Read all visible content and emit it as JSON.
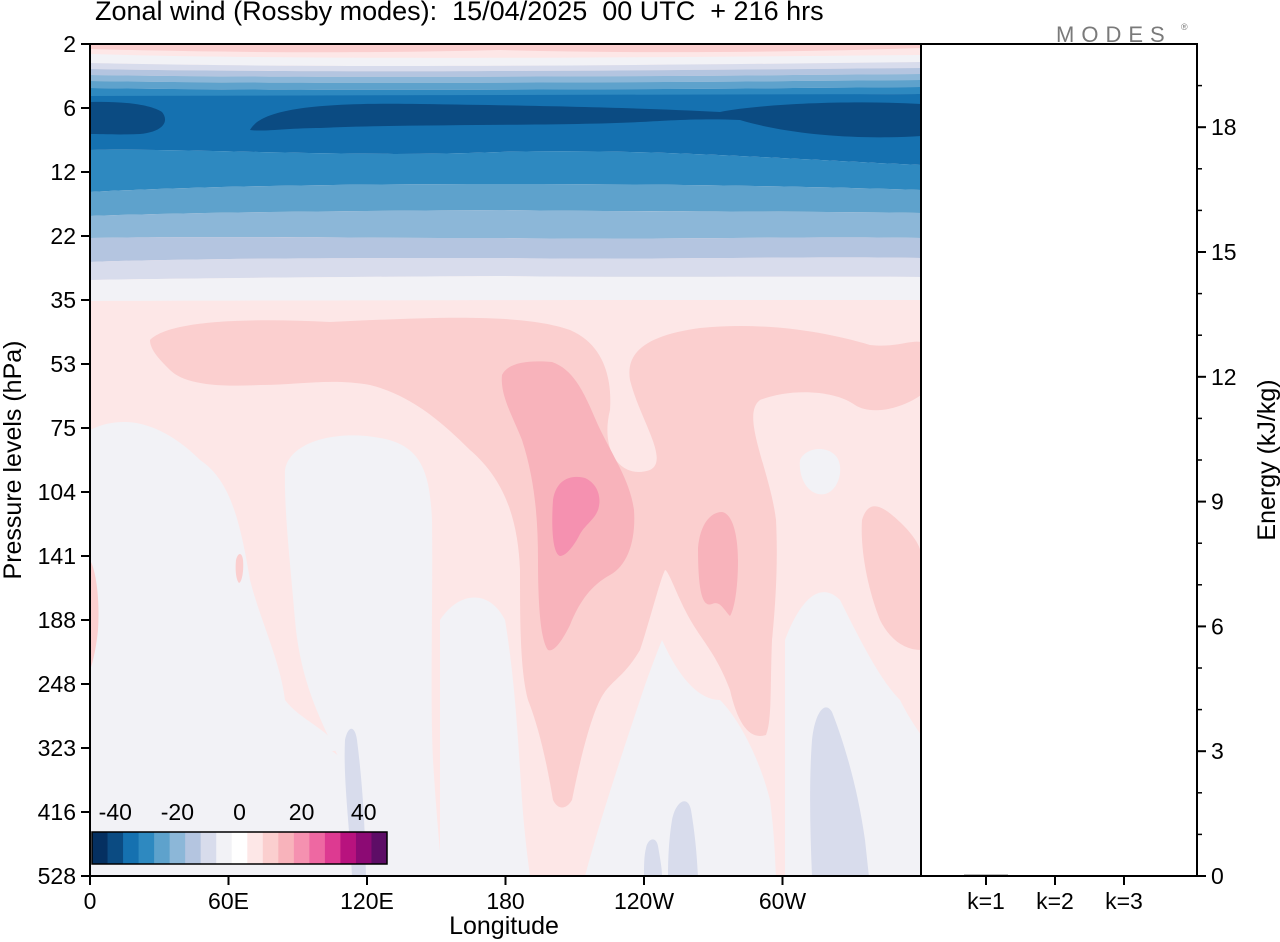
{
  "header": {
    "title": "Zonal wind (Rossby modes):  15/04/2025  00 UTC  + 216 hrs",
    "logo": "MODES",
    "logo_mark": "®"
  },
  "chart_data": [
    {
      "type": "heatmap",
      "title": "Zonal wind (Rossby modes):  15/04/2025  00 UTC  + 216 hrs",
      "xlabel": "Longitude",
      "ylabel": "Pressure levels (hPa)",
      "x_ticks": [
        "0",
        "60E",
        "120E",
        "180",
        "120W",
        "60W"
      ],
      "x_tick_values": [
        0,
        60,
        120,
        180,
        240,
        300
      ],
      "xlim": [
        0,
        360
      ],
      "y_ticks": [
        "2",
        "6",
        "12",
        "22",
        "35",
        "53",
        "75",
        "104",
        "141",
        "188",
        "248",
        "323",
        "416",
        "528"
      ],
      "y_scale": "level-index",
      "colorbar": {
        "tick_labels": [
          "-40",
          "-20",
          "0",
          "20",
          "40"
        ],
        "tick_values": [
          -40,
          -20,
          0,
          20,
          40
        ],
        "bin_width": 5,
        "colors": [
          "#053061",
          "#0b4b82",
          "#1571b0",
          "#2e89c0",
          "#5ea2cc",
          "#8cb7d8",
          "#b4c5e0",
          "#d8dcec",
          "#f2f2f6",
          "#ffffff",
          "#fde7e7",
          "#fbcfcf",
          "#f8b3bb",
          "#f591b0",
          "#ee68a2",
          "#dd3a91",
          "#b8127e",
          "#8c0a74",
          "#5d0d66"
        ]
      },
      "fields": [
        {
          "level": "2",
          "zonal_mean": 5,
          "note": "weak positive near top"
        },
        {
          "level": "6",
          "zonal_mean": -37
        },
        {
          "level": "12",
          "zonal_mean": -28
        },
        {
          "level": "22",
          "zonal_mean": -12
        },
        {
          "level": "35",
          "zonal_mean": 1
        },
        {
          "level": "53",
          "zonal_mean": 5
        },
        {
          "level": "104",
          "zonal_mean": 2,
          "max": 20,
          "max_lon": 200
        },
        {
          "level": "141",
          "zonal_mean": 3,
          "max": 15,
          "max_lon": 270
        },
        {
          "level": "528",
          "zonal_mean": 0
        }
      ]
    },
    {
      "type": "bar",
      "ylabel": "Energy (kJ/kg)",
      "categories": [
        "k=1",
        "k=2",
        "k=3"
      ],
      "values": [
        0.03,
        0.02,
        0.02
      ],
      "ylim": [
        0,
        20
      ],
      "y_ticks": [
        0,
        3,
        6,
        9,
        12,
        15,
        18
      ],
      "grid": false
    }
  ]
}
